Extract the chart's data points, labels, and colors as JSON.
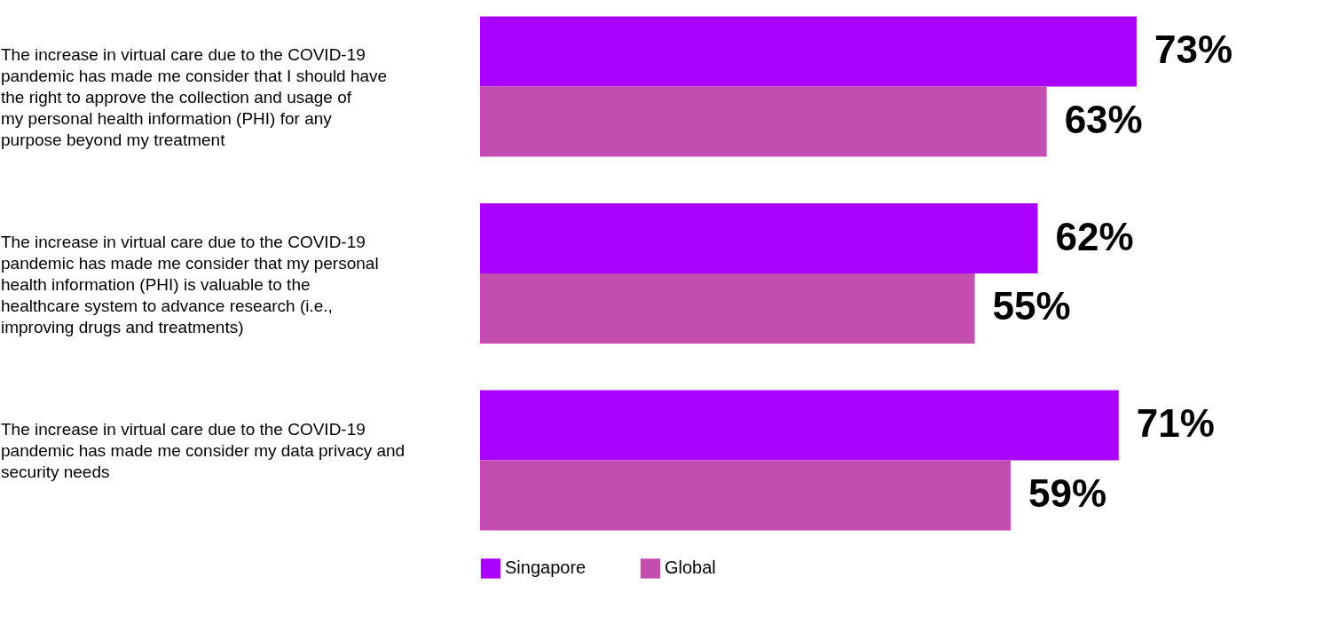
{
  "chart_data": {
    "type": "bar",
    "orientation": "horizontal",
    "categories": [
      "The increase in virtual care due to the COVID-19 pandemic has made me consider that I should have the right to approve the collection and usage of my personal health information (PHI) for any purpose beyond my treatment",
      "The increase in virtual care due to the COVID-19 pandemic has made me consider that my personal health information (PHI) is valuable to the healthcare system to advance research (i.e., improving drugs and treatments)",
      "The increase in virtual care due to the COVID-19 pandemic has made me consider my data privacy and security needs"
    ],
    "series": [
      {
        "name": "Singapore",
        "color": "#aa00ff",
        "values": [
          73,
          62,
          71
        ],
        "value_labels": [
          "73%",
          "62%",
          "71%"
        ]
      },
      {
        "name": "Global",
        "color": "#c44db0",
        "values": [
          63,
          55,
          59
        ],
        "value_labels": [
          "63%",
          "55%",
          "59%"
        ]
      }
    ],
    "legend": "bottom"
  }
}
